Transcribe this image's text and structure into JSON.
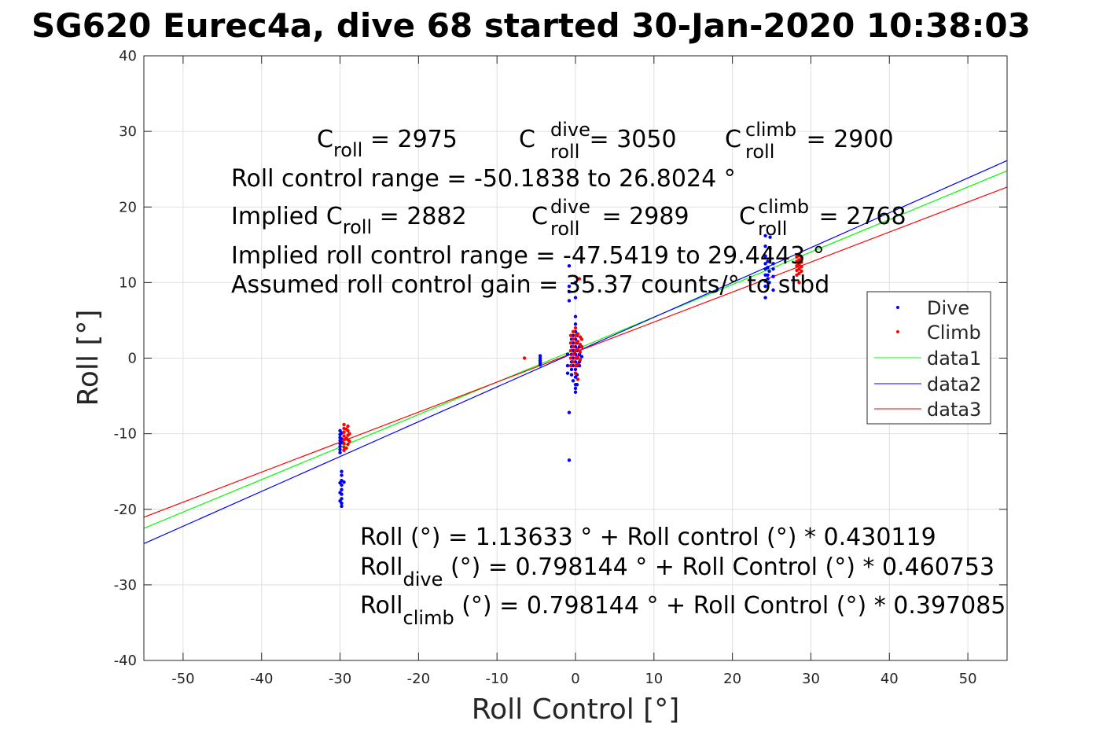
{
  "chart_data": {
    "type": "scatter",
    "title": "SG620 Eurec4a, dive 68 started 30-Jan-2020 10:38:03",
    "xlabel": "Roll Control [°]",
    "ylabel": "Roll [°]",
    "xlim": [
      -55,
      55
    ],
    "ylim": [
      -40,
      40
    ],
    "xticks": [
      -50,
      -40,
      -30,
      -20,
      -10,
      0,
      10,
      20,
      30,
      40,
      50
    ],
    "yticks": [
      -40,
      -30,
      -20,
      -10,
      0,
      10,
      20,
      30,
      40
    ],
    "grid": true,
    "legend_position": "right",
    "colors": {
      "dive": "#0000ff",
      "climb": "#ff0000",
      "data1": "#00ff00",
      "data2": "#0000ff",
      "data3": "#ff0000"
    },
    "series": [
      {
        "name": "Dive",
        "kind": "points",
        "points": [
          [
            -30.0,
            -9.6
          ],
          [
            -30.0,
            -10.1
          ],
          [
            -30.0,
            -10.5
          ],
          [
            -30.0,
            -10.9
          ],
          [
            -30.0,
            -11.3
          ],
          [
            -30.0,
            -11.7
          ],
          [
            -30.0,
            -12.1
          ],
          [
            -30.0,
            -12.5
          ],
          [
            -29.8,
            -9.9
          ],
          [
            -29.8,
            -10.7
          ],
          [
            -29.7,
            -11.2
          ],
          [
            -29.8,
            -15.0
          ],
          [
            -29.8,
            -15.5
          ],
          [
            -29.8,
            -16.2
          ],
          [
            -29.8,
            -16.8
          ],
          [
            -29.8,
            -17.4
          ],
          [
            -29.8,
            -18.0
          ],
          [
            -29.8,
            -18.6
          ],
          [
            -29.8,
            -19.2
          ],
          [
            -29.8,
            -19.6
          ],
          [
            -30.0,
            -16.5
          ],
          [
            -30.0,
            -17.8
          ],
          [
            -30.0,
            -18.9
          ],
          [
            -29.5,
            -16.4
          ],
          [
            -4.5,
            0.0
          ],
          [
            -4.5,
            -0.3
          ],
          [
            -4.5,
            -0.6
          ],
          [
            -4.5,
            0.3
          ],
          [
            -4.5,
            -0.9
          ],
          [
            -0.8,
            12.2
          ],
          [
            -0.8,
            9.5
          ],
          [
            -0.8,
            8.8
          ],
          [
            -0.8,
            7.6
          ],
          [
            -0.8,
            -7.2
          ],
          [
            -0.8,
            -13.5
          ],
          [
            -1.0,
            0.5
          ],
          [
            -1.0,
            -1.0
          ],
          [
            -1.0,
            -2.0
          ],
          [
            -0.5,
            -1.5
          ],
          [
            -0.5,
            -0.5
          ],
          [
            -0.5,
            0.5
          ],
          [
            -0.5,
            1.5
          ],
          [
            -0.5,
            2.5
          ],
          [
            -0.5,
            -2.2
          ],
          [
            -0.3,
            0.0
          ],
          [
            -0.3,
            1.0
          ],
          [
            -0.3,
            2.0
          ],
          [
            -0.3,
            3.0
          ],
          [
            -0.3,
            -1.0
          ],
          [
            -0.3,
            -3.0
          ],
          [
            0.0,
            -4.5
          ],
          [
            0.0,
            -4.0
          ],
          [
            0.0,
            -3.5
          ],
          [
            0.0,
            -2.5
          ],
          [
            0.0,
            -1.5
          ],
          [
            0.0,
            -0.5
          ],
          [
            0.0,
            0.5
          ],
          [
            0.0,
            1.5
          ],
          [
            0.0,
            2.5
          ],
          [
            0.0,
            3.5
          ],
          [
            0.0,
            4.5
          ],
          [
            0.0,
            5.5
          ],
          [
            0.0,
            10.0
          ],
          [
            0.0,
            8.0
          ],
          [
            0.0,
            -2.0
          ],
          [
            0.2,
            -1.0
          ],
          [
            0.2,
            0.0
          ],
          [
            0.2,
            1.0
          ],
          [
            0.2,
            2.0
          ],
          [
            0.2,
            3.0
          ],
          [
            0.2,
            -3.5
          ],
          [
            0.2,
            -2.2
          ],
          [
            0.5,
            0.5
          ],
          [
            0.5,
            1.5
          ],
          [
            0.5,
            -0.5
          ],
          [
            0.5,
            -1.0
          ],
          [
            0.8,
            0.2
          ],
          [
            0.8,
            1.5
          ],
          [
            24.2,
            16.2
          ],
          [
            24.2,
            14.8
          ],
          [
            24.2,
            13.5
          ],
          [
            24.2,
            12.5
          ],
          [
            24.2,
            11.8
          ],
          [
            24.2,
            11.0
          ],
          [
            24.2,
            10.2
          ],
          [
            24.2,
            9.5
          ],
          [
            24.2,
            8.0
          ],
          [
            24.5,
            12.0
          ],
          [
            24.5,
            11.0
          ],
          [
            24.5,
            10.5
          ],
          [
            24.5,
            12.8
          ],
          [
            24.7,
            11.5
          ],
          [
            24.7,
            10.0
          ],
          [
            24.8,
            16.0
          ],
          [
            24.8,
            14.5
          ],
          [
            25.2,
            12.5
          ],
          [
            25.2,
            11.8
          ],
          [
            25.2,
            10.8
          ],
          [
            25.2,
            9.0
          ]
        ]
      },
      {
        "name": "Climb",
        "kind": "points",
        "points": [
          [
            -29.5,
            -8.8
          ],
          [
            -29.5,
            -9.3
          ],
          [
            -29.5,
            -9.8
          ],
          [
            -29.5,
            -10.3
          ],
          [
            -29.5,
            -10.8
          ],
          [
            -29.5,
            -11.3
          ],
          [
            -29.5,
            -11.8
          ],
          [
            -29.5,
            -12.2
          ],
          [
            -29.0,
            -9.0
          ],
          [
            -29.0,
            -9.6
          ],
          [
            -29.0,
            -10.2
          ],
          [
            -29.0,
            -10.8
          ],
          [
            -29.0,
            -11.4
          ],
          [
            -29.2,
            -9.4
          ],
          [
            -29.2,
            -10.6
          ],
          [
            -29.2,
            -11.9
          ],
          [
            -28.8,
            -10.0
          ],
          [
            -28.8,
            -11.0
          ],
          [
            -6.5,
            0.0
          ],
          [
            -0.6,
            3.0
          ],
          [
            -0.6,
            2.0
          ],
          [
            -0.6,
            1.0
          ],
          [
            -0.6,
            0.0
          ],
          [
            -0.6,
            -1.0
          ],
          [
            -0.3,
            3.5
          ],
          [
            -0.3,
            2.5
          ],
          [
            -0.3,
            1.5
          ],
          [
            -0.3,
            0.5
          ],
          [
            -0.3,
            -0.5
          ],
          [
            0.0,
            4.0
          ],
          [
            0.0,
            3.0
          ],
          [
            0.0,
            2.0
          ],
          [
            0.0,
            1.0
          ],
          [
            0.0,
            0.0
          ],
          [
            0.0,
            -1.0
          ],
          [
            0.0,
            -2.0
          ],
          [
            0.3,
            3.2
          ],
          [
            0.3,
            2.2
          ],
          [
            0.3,
            1.2
          ],
          [
            0.3,
            0.2
          ],
          [
            0.3,
            -0.8
          ],
          [
            0.3,
            -2.8
          ],
          [
            0.6,
            2.8
          ],
          [
            0.6,
            1.8
          ],
          [
            0.6,
            0.8
          ],
          [
            0.6,
            -0.2
          ],
          [
            0.8,
            2.5
          ],
          [
            0.8,
            1.5
          ],
          [
            0.5,
            10.5
          ],
          [
            28.2,
            11.0
          ],
          [
            28.2,
            11.6
          ],
          [
            28.2,
            12.2
          ],
          [
            28.2,
            12.8
          ],
          [
            28.2,
            13.4
          ],
          [
            28.5,
            11.2
          ],
          [
            28.5,
            11.8
          ],
          [
            28.5,
            12.4
          ],
          [
            28.5,
            13.0
          ],
          [
            28.5,
            13.6
          ],
          [
            28.5,
            10.0
          ],
          [
            28.8,
            11.5
          ],
          [
            28.8,
            12.1
          ],
          [
            28.8,
            12.7
          ],
          [
            28.8,
            13.3
          ]
        ]
      },
      {
        "name": "data1",
        "kind": "line",
        "intercept": 1.13633,
        "slope": 0.430119
      },
      {
        "name": "data2",
        "kind": "line",
        "intercept": 0.798144,
        "slope": 0.460753
      },
      {
        "name": "data3",
        "kind": "line",
        "intercept": 0.798144,
        "slope": 0.397085
      }
    ],
    "annotations": {
      "c_roll_base": "C",
      "c_roll_sub": "roll",
      "c_roll_val": " = 2975",
      "c_dive_base": "C",
      "c_dive_sup": "dive",
      "c_dive_sub": "roll",
      "c_dive_val": " = 3050",
      "c_climb_base": "C",
      "c_climb_sup": "climb",
      "c_climb_sub": "roll",
      "c_climb_val": " = 2900",
      "range_line": "Roll control range = -50.1838 to 26.8024 °",
      "implied_prefix": "Implied C",
      "implied_sub": "roll",
      "implied_val": " = 2882",
      "implied_dive_base": "C",
      "implied_dive_sup": "dive",
      "implied_dive_sub": "roll",
      "implied_dive_val": " = 2989",
      "implied_climb_base": "C",
      "implied_climb_sup": "climb",
      "implied_climb_sub": "roll",
      "implied_climb_val": " = 2768",
      "implied_range_line": "Implied roll control range = -47.5419 to 29.4443 °",
      "gain_line": "Assumed roll control gain = 35.37 counts/° to stbd",
      "fit1": "Roll (°) = 1.13633 ° + Roll control (°) * 0.430119",
      "fit2_base": "Roll",
      "fit2_sub": "dive",
      "fit2_rest": " (°) = 0.798144 ° + Roll Control (°) * 0.460753",
      "fit3_base": "Roll",
      "fit3_sub": "climb",
      "fit3_rest": " (°) = 0.798144 ° + Roll Control (°) * 0.397085"
    }
  }
}
